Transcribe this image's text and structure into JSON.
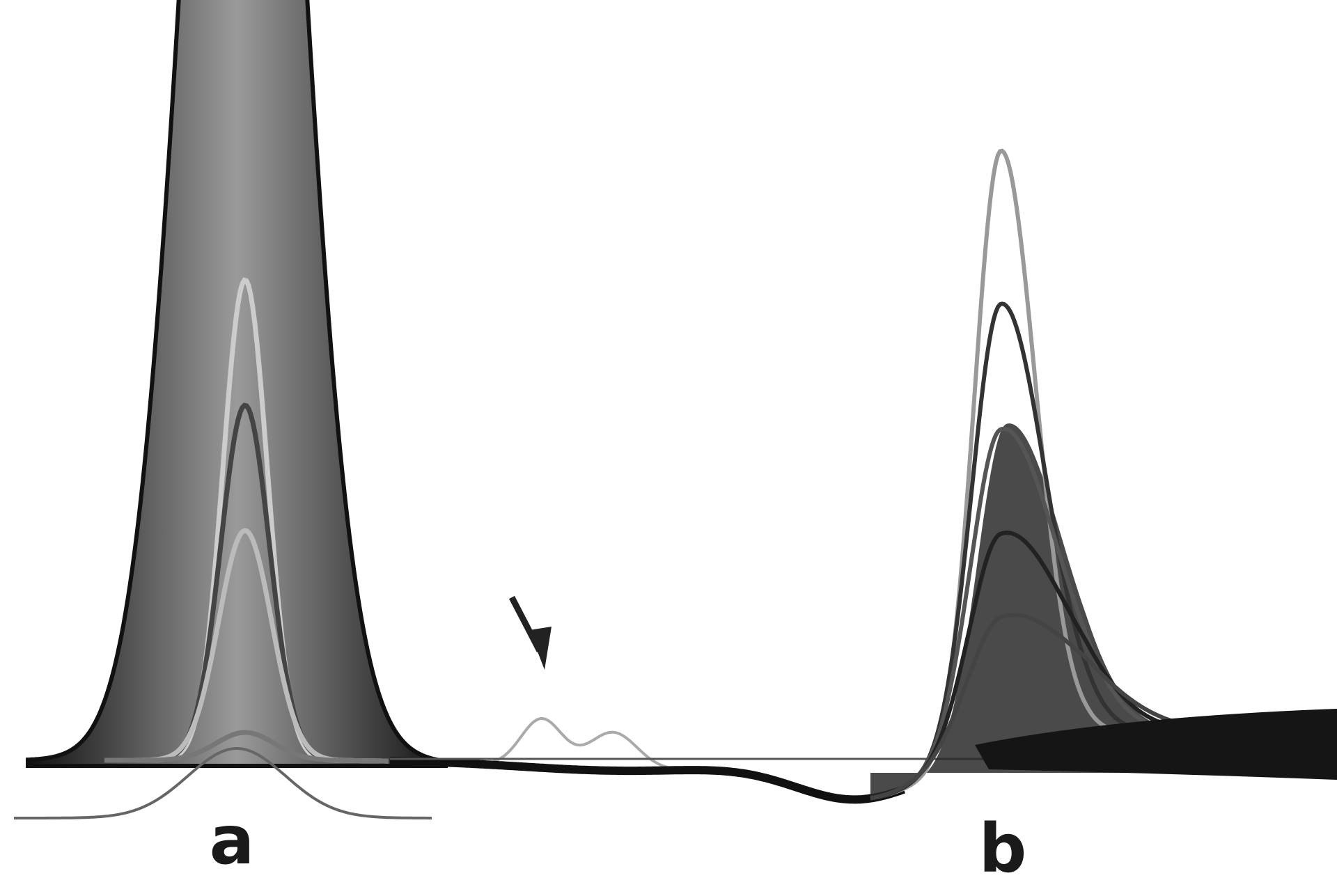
{
  "peaks": [
    {
      "label": "a"
    },
    {
      "label": "b"
    }
  ]
}
